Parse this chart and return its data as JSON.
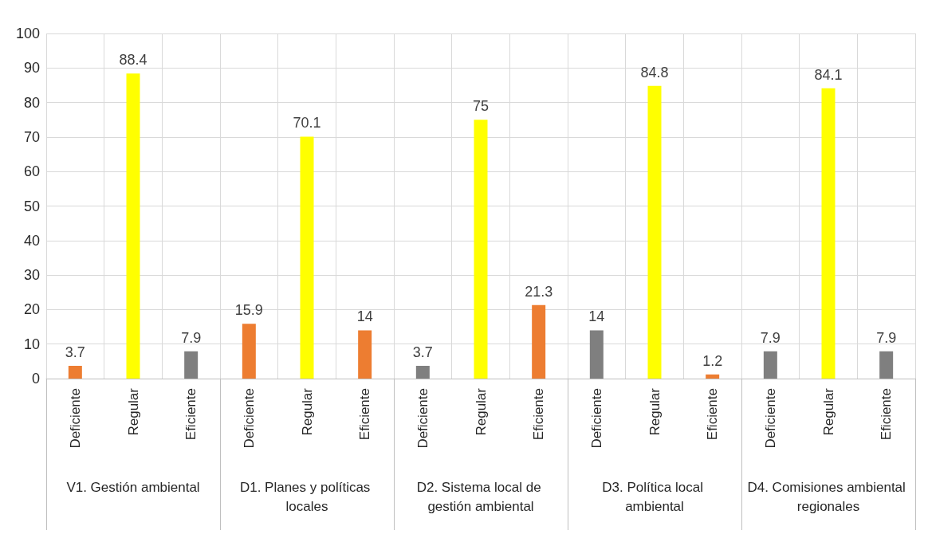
{
  "chart_data": {
    "type": "bar",
    "categories": [
      "Deficiente",
      "Regular",
      "Eficiente",
      "Deficiente",
      "Regular",
      "Eficiente",
      "Deficiente",
      "Regular",
      "Eficiente",
      "Deficiente",
      "Regular",
      "Eficiente",
      "Deficiente",
      "Regular",
      "Eficiente"
    ],
    "values": [
      3.7,
      88.4,
      7.9,
      15.9,
      70.1,
      14,
      3.7,
      75,
      21.3,
      14,
      84.8,
      1.2,
      7.9,
      84.1,
      7.9
    ],
    "colors": [
      "#ed7d31",
      "#ffff00",
      "#7f7f7f",
      "#ed7d31",
      "#ffff00",
      "#ed7d31",
      "#7f7f7f",
      "#ffff00",
      "#ed7d31",
      "#7f7f7f",
      "#ffff00",
      "#ed7d31",
      "#7f7f7f",
      "#ffff00",
      "#7f7f7f"
    ],
    "ylim": [
      0,
      100
    ],
    "yticks": [
      0,
      10,
      20,
      30,
      40,
      50,
      60,
      70,
      80,
      90,
      100
    ],
    "grid": true,
    "data_labels": true,
    "annotations": [
      "V1. Gestión ambiental",
      "D1. Planes y políticas locales",
      "D2. Sistema local de gestión ambiental",
      "D3. Política local ambiental",
      "D4. Comisiones ambiental regionales"
    ]
  }
}
